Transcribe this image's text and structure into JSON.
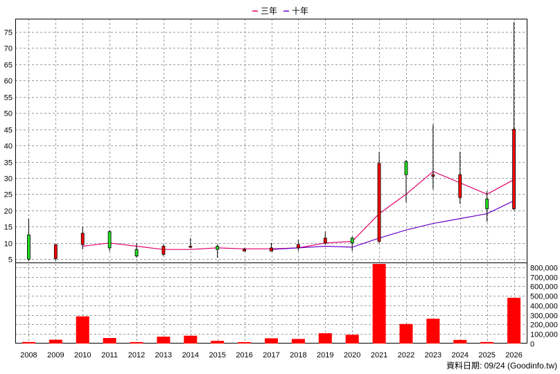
{
  "chart_data": {
    "type": "candlestick+bar",
    "legend": [
      {
        "label": "三年",
        "color": "#e0006a"
      },
      {
        "label": "十年",
        "color": "#6a00c8"
      }
    ],
    "years": [
      "2008",
      "2009",
      "2010",
      "2011",
      "2012",
      "2013",
      "2014",
      "2015",
      "2016",
      "2017",
      "2018",
      "2019",
      "2020",
      "2021",
      "2022",
      "2023",
      "2024",
      "2025",
      "2026"
    ],
    "price_axis": {
      "ticks": [
        5,
        10,
        15,
        20,
        25,
        30,
        35,
        40,
        45,
        50,
        55,
        60,
        65,
        70,
        75
      ],
      "range": [
        4,
        79
      ]
    },
    "volume_axis": {
      "ticks": [
        "0",
        "100,000",
        "200,000",
        "300,000",
        "400,000",
        "500,000",
        "600,000",
        "700,000",
        "800,000"
      ],
      "range": [
        0,
        850000
      ]
    },
    "candles": [
      {
        "year": "2008",
        "open": 5,
        "high": 17.5,
        "low": 4.5,
        "close": 12.5
      },
      {
        "year": "2009",
        "open": 9.5,
        "high": 9.7,
        "low": 4.5,
        "close": 5.2
      },
      {
        "year": "2010",
        "open": 13,
        "high": 15,
        "low": 8,
        "close": 9.5
      },
      {
        "year": "2011",
        "open": 8.5,
        "high": 14,
        "low": 7.5,
        "close": 13.5
      },
      {
        "year": "2012",
        "open": 6,
        "high": 10,
        "low": 5.5,
        "close": 8
      },
      {
        "year": "2013",
        "open": 9,
        "high": 9.5,
        "low": 6,
        "close": 6.5
      },
      {
        "year": "2014",
        "open": 9,
        "high": 11.5,
        "low": 8.5,
        "close": 9
      },
      {
        "year": "2015",
        "open": 8,
        "high": 9.5,
        "low": 5.5,
        "close": 9
      },
      {
        "year": "2016",
        "open": 8,
        "high": 8.5,
        "low": 7.5,
        "close": 7.5
      },
      {
        "year": "2017",
        "open": 8.5,
        "high": 10,
        "low": 7.5,
        "close": 7.5
      },
      {
        "year": "2018",
        "open": 9.5,
        "high": 11,
        "low": 7.5,
        "close": 8.5
      },
      {
        "year": "2019",
        "open": 11.5,
        "high": 13.5,
        "low": 9.5,
        "close": 10
      },
      {
        "year": "2020",
        "open": 10,
        "high": 12,
        "low": 7.5,
        "close": 11.5
      },
      {
        "year": "2021",
        "open": 34.5,
        "high": 38,
        "low": 10,
        "close": 10.5
      },
      {
        "year": "2022",
        "open": 31,
        "high": 35.5,
        "low": 22.5,
        "close": 35
      },
      {
        "year": "2023",
        "open": 31,
        "high": 46.5,
        "low": 26.5,
        "close": 30.5
      },
      {
        "year": "2024",
        "open": 31,
        "high": 38,
        "low": 22,
        "close": 24
      },
      {
        "year": "2025",
        "open": 20.5,
        "high": 26,
        "low": 16.5,
        "close": 23.5
      },
      {
        "year": "2026",
        "open": 45,
        "high": 78,
        "low": 20,
        "close": 20.5
      }
    ],
    "series": [
      {
        "name": "三年",
        "values": [
          null,
          null,
          9,
          10,
          9,
          8,
          8,
          8.5,
          8.2,
          8.2,
          8.5,
          10,
          10.5,
          19,
          25,
          32,
          28.5,
          25,
          29.5
        ]
      },
      {
        "name": "十年",
        "values": [
          null,
          null,
          null,
          null,
          null,
          null,
          null,
          null,
          null,
          8,
          8.5,
          9,
          8.7,
          11.5,
          14,
          16,
          17.5,
          19,
          23
        ]
      }
    ],
    "volume": [
      16000,
      40000,
      285000,
      58000,
      15000,
      72000,
      82000,
      28000,
      15000,
      55000,
      48000,
      108000,
      92000,
      835000,
      205000,
      260000,
      38000,
      16000,
      480000
    ],
    "source_note": "資料日期: 09/24 (Goodinfo.tw)"
  }
}
